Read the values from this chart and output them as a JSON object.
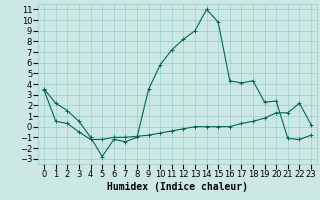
{
  "xlabel": "Humidex (Indice chaleur)",
  "background_color": "#cce8e4",
  "grid_color": "#99cccc",
  "line_color": "#006655",
  "xlim": [
    -0.5,
    23.5
  ],
  "ylim": [
    -3.5,
    11.5
  ],
  "xticks": [
    0,
    1,
    2,
    3,
    4,
    5,
    6,
    7,
    8,
    9,
    10,
    11,
    12,
    13,
    14,
    15,
    16,
    17,
    18,
    19,
    20,
    21,
    22,
    23
  ],
  "yticks": [
    -3,
    -2,
    -1,
    0,
    1,
    2,
    3,
    4,
    5,
    6,
    7,
    8,
    9,
    10,
    11
  ],
  "curve1_x": [
    0,
    1,
    2,
    3,
    4,
    5,
    6,
    7,
    8,
    9,
    10,
    11,
    12,
    13,
    14,
    15,
    16,
    17,
    18,
    19,
    20,
    21,
    22,
    23
  ],
  "curve1_y": [
    3.5,
    2.2,
    1.5,
    0.5,
    -1.0,
    -2.8,
    -1.2,
    -1.4,
    -1.0,
    3.5,
    5.8,
    7.2,
    8.2,
    9.0,
    11.0,
    9.8,
    4.3,
    4.1,
    4.3,
    2.3,
    2.4,
    -1.1,
    -1.2,
    -0.8
  ],
  "curve2_x": [
    0,
    1,
    2,
    3,
    4,
    5,
    6,
    7,
    8,
    9,
    10,
    11,
    12,
    13,
    14,
    15,
    16,
    17,
    18,
    19,
    20,
    21,
    22,
    23
  ],
  "curve2_y": [
    3.4,
    0.5,
    0.3,
    -0.5,
    -1.2,
    -1.2,
    -1.0,
    -1.0,
    -0.9,
    -0.8,
    -0.6,
    -0.4,
    -0.2,
    0.0,
    0.0,
    0.0,
    0.0,
    0.3,
    0.5,
    0.8,
    1.3,
    1.3,
    2.2,
    0.2
  ],
  "fontsize_tick": 6,
  "fontsize_label": 7
}
